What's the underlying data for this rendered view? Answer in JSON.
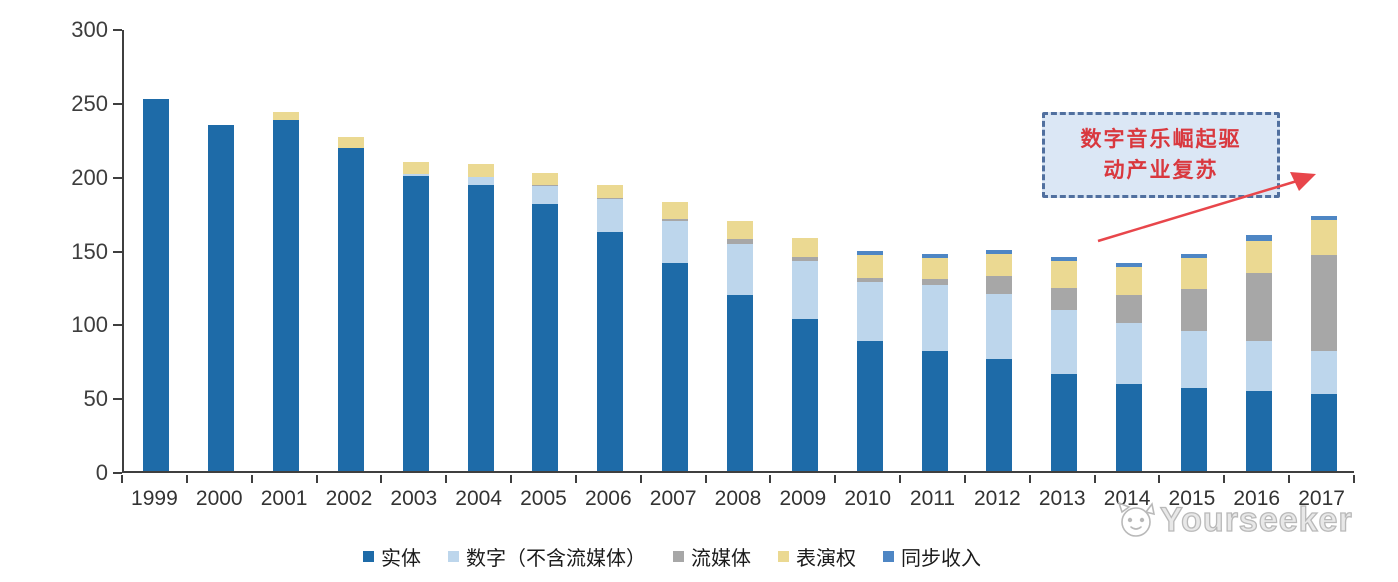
{
  "chart_data": {
    "type": "bar",
    "stacked": true,
    "categories": [
      "1999",
      "2000",
      "2001",
      "2002",
      "2003",
      "2004",
      "2005",
      "2006",
      "2007",
      "2008",
      "2009",
      "2010",
      "2011",
      "2012",
      "2013",
      "2014",
      "2015",
      "2016",
      "2017"
    ],
    "series": [
      {
        "name": "实体",
        "color": "#1e6ba8",
        "values": [
          252,
          234,
          238,
          219,
          200,
          194,
          181,
          162,
          141,
          119,
          103,
          88,
          81,
          76,
          66,
          59,
          56,
          54,
          52
        ]
      },
      {
        "name": "数字（不含流媒体）",
        "color": "#bdd6ec",
        "values": [
          0,
          0,
          0,
          0,
          1,
          5,
          12,
          22,
          28,
          35,
          39,
          40,
          45,
          44,
          43,
          41,
          39,
          34,
          29
        ]
      },
      {
        "name": "流媒体",
        "color": "#a7a7a7",
        "values": [
          0,
          0,
          0,
          0,
          0,
          0,
          1,
          1,
          2,
          3,
          3,
          3,
          4,
          12,
          15,
          19,
          28,
          46,
          65
        ]
      },
      {
        "name": "表演权",
        "color": "#ebd992",
        "values": [
          0,
          0,
          5,
          7,
          8,
          9,
          8,
          9,
          11,
          12,
          13,
          15,
          14,
          15,
          18,
          19,
          21,
          22,
          24
        ]
      },
      {
        "name": "同步收入",
        "color": "#4e86c4",
        "values": [
          0,
          0,
          0,
          0,
          0,
          0,
          0,
          0,
          0,
          0,
          0,
          3,
          3,
          3,
          3,
          3,
          3,
          4,
          3
        ]
      }
    ],
    "ylim": [
      0,
      300
    ],
    "yticks": [
      0,
      50,
      100,
      150,
      200,
      250,
      300
    ],
    "xlabel": "",
    "ylabel": "",
    "grid": false,
    "legend_position": "bottom"
  },
  "annotation": {
    "line1": "数字音乐崛起驱",
    "line2": "动产业复苏",
    "text_color": "#d9383e",
    "box_fill": "#dbe7f5",
    "box_border": "#51709f",
    "arrow_color": "#e8464b"
  },
  "axis": {
    "color": "#3f3f3f"
  },
  "watermark": {
    "text": "Yourseeker",
    "logo": "cat-logo"
  }
}
